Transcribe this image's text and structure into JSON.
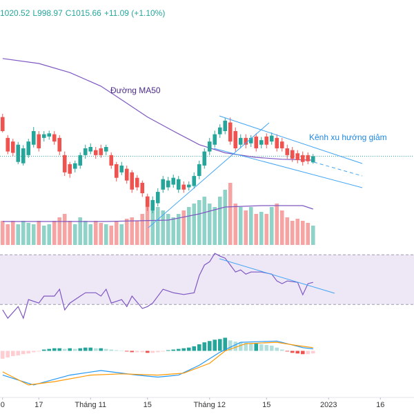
{
  "chart_data": {
    "type": "candlestick",
    "header": [
      "1020.52",
      "L998.97",
      "C1015.66",
      "+11.09 (+1.10%)"
    ],
    "annotations": [
      "Đường MA50",
      "Kênh xu hướng giảm"
    ],
    "xlim": [
      -0.5,
      79.5
    ],
    "xticks": [
      0,
      {
        "value": 7,
        "label": "17"
      },
      {
        "value": 17,
        "label": "Tháng 11"
      },
      {
        "value": 28,
        "label": "15"
      },
      {
        "value": 40,
        "label": "Tháng 12"
      },
      {
        "value": 51,
        "label": "15"
      },
      {
        "value": 63,
        "label": "2023"
      },
      {
        "value": 73,
        "label": "16"
      }
    ],
    "ylim": [
      820,
      1360
    ],
    "up_color": "#26a69a",
    "down_color": "#ef5350",
    "x": [
      0,
      1,
      2,
      3,
      4,
      5,
      6,
      7,
      8,
      9,
      10,
      11,
      12,
      13,
      14,
      15,
      16,
      17,
      18,
      19,
      20,
      21,
      22,
      23,
      24,
      25,
      26,
      27,
      28,
      29,
      30,
      31,
      32,
      33,
      34,
      35,
      36,
      37,
      38,
      39,
      40,
      41,
      42,
      43,
      44,
      45,
      46,
      47,
      48,
      49,
      50,
      51,
      52,
      53,
      54,
      55,
      56,
      57,
      58,
      59,
      60
    ],
    "open": [
      1102,
      1056,
      1048,
      1003,
      1000,
      1018,
      1041,
      1064,
      1056,
      1059,
      1064,
      1056,
      1018,
      998,
      988,
      995,
      1018,
      1026,
      1029,
      1033,
      1026,
      1018,
      998,
      980,
      988,
      980,
      968,
      957,
      927,
      896,
      912,
      942,
      947,
      953,
      942,
      953,
      947,
      950,
      972,
      995,
      1026,
      1041,
      1064,
      1071,
      1090,
      1071,
      1041,
      1056,
      1044,
      1059,
      1041,
      1059,
      1048,
      1056,
      1048,
      1033,
      1029,
      1022,
      1018,
      1018,
      1002
    ],
    "high": [
      1109,
      1062,
      1054,
      1047,
      1040,
      1054,
      1080,
      1071,
      1071,
      1072,
      1071,
      1062,
      1026,
      1003,
      1006,
      1024,
      1041,
      1044,
      1036,
      1041,
      1041,
      1024,
      1003,
      1003,
      995,
      985,
      974,
      962,
      933,
      927,
      945,
      972,
      970,
      975,
      972,
      960,
      960,
      980,
      1006,
      1033,
      1056,
      1072,
      1086,
      1101,
      1101,
      1079,
      1064,
      1064,
      1062,
      1066,
      1058,
      1066,
      1068,
      1064,
      1056,
      1041,
      1036,
      1029,
      1026,
      1024,
      1020.52
    ],
    "low": [
      1068,
      1020,
      1016,
      998,
      995,
      1012,
      1035,
      1026,
      1048,
      1052,
      1041,
      1018,
      972,
      968,
      980,
      988,
      1010,
      1020,
      1010,
      1012,
      1018,
      988,
      960,
      974,
      955,
      935,
      940,
      926,
      895,
      890,
      905,
      935,
      940,
      946,
      935,
      935,
      940,
      944,
      965,
      988,
      1018,
      1035,
      1056,
      1064,
      1041,
      1026,
      1033,
      1033,
      1036,
      1026,
      1033,
      1033,
      1041,
      1026,
      1026,
      1010,
      1003,
      1000,
      995,
      998,
      998.97
    ],
    "close": [
      1071,
      1026,
      1023,
      1041,
      1033,
      1048,
      1071,
      1033,
      1064,
      1066,
      1048,
      1026,
      980,
      977,
      1000,
      1018,
      1033,
      1036,
      1018,
      1018,
      1036,
      995,
      968,
      995,
      962,
      942,
      947,
      934,
      904,
      919,
      937,
      965,
      962,
      968,
      965,
      942,
      953,
      972,
      998,
      1026,
      1048,
      1064,
      1079,
      1094,
      1048,
      1033,
      1056,
      1041,
      1056,
      1033,
      1051,
      1041,
      1061,
      1033,
      1033,
      1018,
      1010,
      1007,
      1003,
      1004.57,
      1015.66
    ],
    "ma50": {
      "color": "#7e57c2",
      "x": [
        0,
        7,
        13,
        19,
        23,
        28,
        33,
        38,
        43,
        49,
        54,
        60
      ],
      "values": [
        1231,
        1220,
        1200,
        1170,
        1140,
        1102,
        1071,
        1041,
        1023,
        1013,
        1009,
        1007
      ]
    },
    "volume": {
      "ylim": [
        0,
        160
      ],
      "up_color": "#8fd3c8",
      "down_color": "#f5a3a3",
      "values": [
        35,
        30,
        35,
        30,
        35,
        32,
        30,
        35,
        28,
        30,
        35,
        40,
        45,
        35,
        30,
        40,
        35,
        30,
        35,
        32,
        30,
        28,
        35,
        30,
        38,
        40,
        35,
        45,
        65,
        60,
        55,
        50,
        45,
        40,
        45,
        50,
        55,
        60,
        65,
        70,
        60,
        55,
        70,
        80,
        90,
        60,
        55,
        50,
        55,
        45,
        48,
        45,
        55,
        60,
        50,
        40,
        35,
        38,
        35,
        32,
        28
      ],
      "ma": {
        "color": "#7e57c2",
        "x": [
          0,
          20,
          32,
          38,
          43,
          50,
          58,
          60
        ],
        "values": [
          34,
          34,
          36,
          45,
          55,
          57,
          57,
          52
        ]
      }
    },
    "rsi": {
      "ylim": [
        14,
        74
      ],
      "bands": [
        30,
        70
      ],
      "band_color": "#ede7f6",
      "color": "#7e57c2",
      "x": [
        0,
        1,
        3,
        4,
        5,
        7,
        8,
        10,
        11,
        12,
        13,
        15,
        16,
        18,
        19,
        20,
        21,
        23,
        24,
        25,
        27,
        28,
        29,
        31,
        33,
        35,
        37,
        38,
        39,
        40,
        41,
        42,
        43,
        44,
        45,
        46,
        47,
        48,
        50,
        52,
        53,
        54,
        55,
        57,
        58,
        59,
        60
      ],
      "values": [
        25.6,
        18.9,
        28.3,
        18.9,
        33.9,
        31.1,
        36.7,
        36.7,
        42.2,
        25.6,
        31.1,
        36.7,
        39.4,
        39.4,
        36.7,
        42.2,
        31.1,
        33.9,
        28.3,
        36.7,
        26.7,
        28.3,
        31.1,
        42.2,
        39.4,
        38,
        39.4,
        53.3,
        61.7,
        64.4,
        71.1,
        68.9,
        67.2,
        61.7,
        56.1,
        57.8,
        54.4,
        56.1,
        56.1,
        54.4,
        48.9,
        46.7,
        48.9,
        47.8,
        37.8,
        46.7,
        47.8
      ]
    },
    "macd": {
      "ylim": [
        -70,
        30
      ],
      "colors": {
        "up_rising": "#26a69a",
        "up_falling": "#b2dfdb",
        "down_rising": "#ffcdd2",
        "down_falling": "#ef5350"
      },
      "histogram": [
        -12,
        -10,
        -8,
        -7,
        -5,
        -4,
        -2,
        -1,
        2,
        3,
        4,
        4,
        3,
        4,
        3,
        4,
        5,
        5,
        4,
        4,
        3,
        2,
        1,
        0.5,
        -1,
        -2,
        -2,
        -2,
        -3,
        -3,
        -2,
        -1,
        1,
        2,
        3,
        4,
        5,
        7,
        10,
        13,
        15,
        17,
        18,
        20,
        16,
        14,
        13,
        12,
        11,
        11,
        10,
        9,
        8,
        5,
        2,
        -1,
        -3,
        -4,
        -5,
        -5,
        -4
      ],
      "macd": {
        "color": "#2196f3",
        "x": [
          0,
          6,
          13,
          19,
          26,
          30,
          34,
          38,
          42,
          46,
          53,
          58,
          60
        ],
        "values": [
          -37,
          -52,
          -37,
          -30,
          -37,
          -40,
          -37,
          -22,
          -2,
          13,
          15,
          5,
          3
        ]
      },
      "signal": {
        "color": "#ff9800",
        "x": [
          0,
          5,
          10,
          17,
          23,
          30,
          35,
          40,
          43,
          47,
          53,
          57,
          60
        ],
        "values": [
          -32,
          -52,
          -47,
          -37,
          -35,
          -37,
          -34,
          -19,
          0,
          11,
          13,
          8,
          5
        ]
      }
    }
  }
}
